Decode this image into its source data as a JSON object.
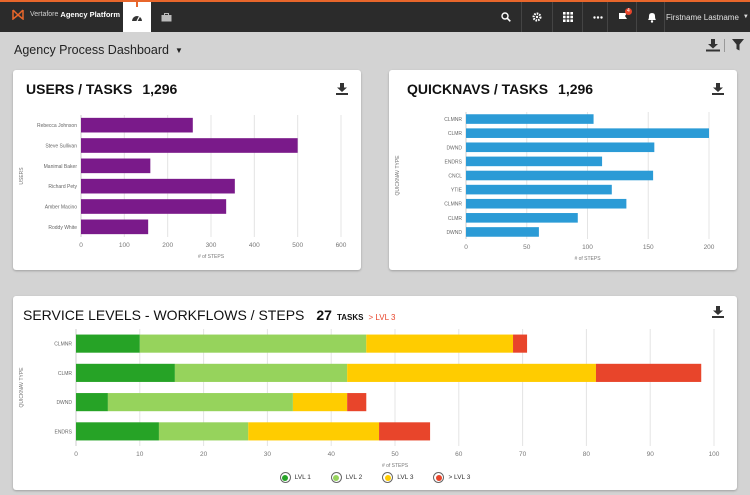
{
  "topbar": {
    "brand_prefix": "Vertafore",
    "brand_name": "Agency Platform",
    "user_name": "Firstname Lastname",
    "notification_count": "4"
  },
  "page": {
    "title": "Agency Process Dashboard"
  },
  "colors": {
    "purple": "#7a1a8a",
    "blue": "#2b9bd6",
    "lvl1": "#26a326",
    "lvl2": "#96d35c",
    "lvl3": "#ffcc00",
    "lvl4": "#e8452b"
  },
  "users_card": {
    "title": "USERS / TASKS",
    "count": "1,296"
  },
  "quicknavs_card": {
    "title": "QUICKNAVS / TASKS",
    "count": "1,296"
  },
  "service_card": {
    "title": "SERVICE LEVELS - WORKFLOWS / STEPS",
    "count": "27",
    "tasks_label": "TASKS",
    "level_label": "> LVL 3"
  },
  "legend": [
    "LVL 1",
    "LVL 2",
    "LVL 3",
    "> LVL 3"
  ],
  "chart_data": [
    {
      "type": "bar",
      "orientation": "horizontal",
      "categories": [
        "Rebecca Johnson",
        "Steve Sullivan",
        "Manimal Baker",
        "Richard Pety",
        "Amber Macino",
        "Roddy White"
      ],
      "values": [
        258,
        500,
        160,
        355,
        335,
        155
      ],
      "xlabel": "# of STEPS",
      "ylabel": "USERS",
      "xlim": [
        0,
        600
      ],
      "xticks": [
        "0",
        "100",
        "200",
        "300",
        "400",
        "500",
        "600"
      ]
    },
    {
      "type": "bar",
      "orientation": "horizontal",
      "categories": [
        "CLMNR",
        "CLMR",
        "DWND",
        "ENDRS",
        "CNCL",
        "YTIE",
        "CLMNR",
        "CLMR",
        "DWND"
      ],
      "values": [
        105,
        200,
        155,
        112,
        154,
        120,
        132,
        92,
        60
      ],
      "xlabel": "# of STEPS",
      "ylabel": "QUICKNAV TYPE",
      "xlim": [
        0,
        200
      ],
      "xticks": [
        "0",
        "50",
        "100",
        "150",
        "200"
      ]
    },
    {
      "type": "bar",
      "orientation": "horizontal",
      "stacked": true,
      "categories": [
        "CLMNR",
        "CLMR",
        "DWND",
        "ENDRS"
      ],
      "series": [
        {
          "name": "LVL 1",
          "values": [
            10,
            15.5,
            5,
            13
          ]
        },
        {
          "name": "LVL 2",
          "values": [
            35.5,
            27,
            29,
            14
          ]
        },
        {
          "name": "LVL 3",
          "values": [
            23,
            39,
            8.5,
            20.5
          ]
        },
        {
          "name": "> LVL 3",
          "values": [
            2.2,
            16.5,
            3,
            8
          ]
        }
      ],
      "xlabel": "# of STEPS",
      "ylabel": "QUICKNAV TYPE",
      "xlim": [
        0,
        100
      ],
      "xticks": [
        "0",
        "10",
        "20",
        "30",
        "40",
        "50",
        "60",
        "70",
        "80",
        "90",
        "100"
      ]
    }
  ]
}
